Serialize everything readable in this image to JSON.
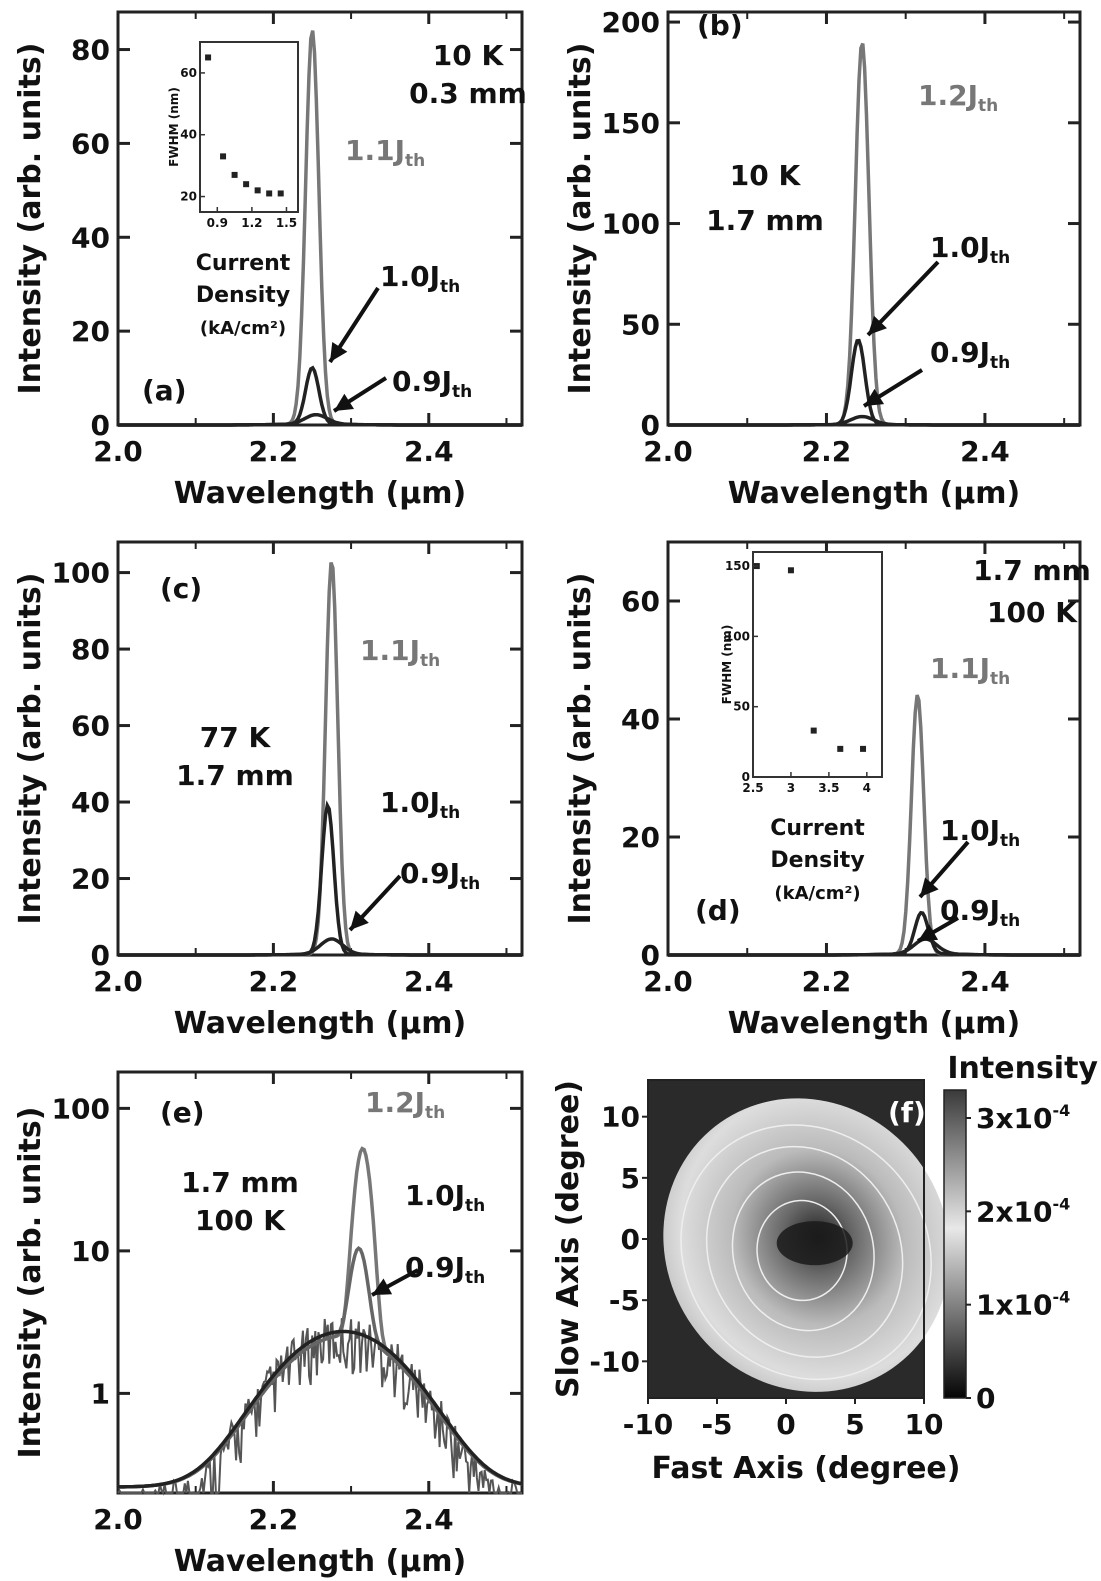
{
  "chart_data": [
    {
      "panel": "(a)",
      "type": "line",
      "xlabel": "Wavelength (μm)",
      "ylabel": "Intensity (arb. units)",
      "xlim": [
        2.0,
        2.52
      ],
      "ylim": [
        0,
        88
      ],
      "xticks": [
        "2.0",
        "2.2",
        "2.4"
      ],
      "yticks": [
        "0",
        "20",
        "40",
        "60",
        "80"
      ],
      "annotations": [
        "10 K",
        "0.3 mm"
      ],
      "series": [
        {
          "name": "1.1J",
          "peak_x": 2.25,
          "peak_y": 84,
          "width": 0.012,
          "color": "#777777"
        },
        {
          "name": "1.0J",
          "peak_x": 2.25,
          "peak_y": 12,
          "width": 0.012,
          "color": "#222222"
        },
        {
          "name": "0.9J",
          "peak_x": 2.255,
          "peak_y": 2,
          "width": 0.02,
          "color": "#222222"
        }
      ],
      "inset": {
        "xlabel": "Current Density (kA/cm²)",
        "ylabel": "FWHM (nm)",
        "xticks": [
          "0.9",
          "1.2",
          "1.5"
        ],
        "yticks": [
          "20",
          "40",
          "60"
        ],
        "xlim": [
          0.75,
          1.6
        ],
        "ylim": [
          15,
          70
        ],
        "x": [
          0.82,
          0.95,
          1.05,
          1.15,
          1.25,
          1.35,
          1.45
        ],
        "y": [
          65,
          33,
          27,
          24,
          22,
          21,
          21
        ]
      }
    },
    {
      "panel": "(b)",
      "type": "line",
      "xlabel": "Wavelength (μm)",
      "ylabel": "Intensity (arb. units)",
      "xlim": [
        2.0,
        2.52
      ],
      "ylim": [
        0,
        205
      ],
      "xticks": [
        "2.0",
        "2.2",
        "2.4"
      ],
      "yticks": [
        "0",
        "50",
        "100",
        "150",
        "200"
      ],
      "annotations": [
        "10 K",
        "1.7 mm"
      ],
      "series": [
        {
          "name": "1.2J",
          "peak_x": 2.245,
          "peak_y": 190,
          "width": 0.012,
          "color": "#777777"
        },
        {
          "name": "1.0J",
          "peak_x": 2.24,
          "peak_y": 42,
          "width": 0.012,
          "color": "#222222"
        },
        {
          "name": "0.9J",
          "peak_x": 2.245,
          "peak_y": 4,
          "width": 0.02,
          "color": "#222222"
        }
      ]
    },
    {
      "panel": "(c)",
      "type": "line",
      "xlabel": "Wavelength (μm)",
      "ylabel": "Intensity (arb. units)",
      "xlim": [
        2.0,
        2.52
      ],
      "ylim": [
        0,
        108
      ],
      "xticks": [
        "2.0",
        "2.2",
        "2.4"
      ],
      "yticks": [
        "0",
        "20",
        "40",
        "60",
        "80",
        "100"
      ],
      "annotations": [
        "77 K",
        "1.7 mm"
      ],
      "series": [
        {
          "name": "1.1J",
          "peak_x": 2.275,
          "peak_y": 103,
          "width": 0.011,
          "color": "#777777"
        },
        {
          "name": "1.0J",
          "peak_x": 2.27,
          "peak_y": 39,
          "width": 0.011,
          "color": "#222222"
        },
        {
          "name": "0.9J",
          "peak_x": 2.275,
          "peak_y": 4,
          "width": 0.02,
          "color": "#222222"
        }
      ]
    },
    {
      "panel": "(d)",
      "type": "line",
      "xlabel": "Wavelength (μm)",
      "ylabel": "Intensity (arb. units)",
      "xlim": [
        2.0,
        2.52
      ],
      "ylim": [
        0,
        70
      ],
      "xticks": [
        "2.0",
        "2.2",
        "2.4"
      ],
      "yticks": [
        "0",
        "20",
        "40",
        "60"
      ],
      "annotations": [
        "1.7 mm",
        "100 K"
      ],
      "series": [
        {
          "name": "1.1J",
          "peak_x": 2.315,
          "peak_y": 44,
          "width": 0.011,
          "color": "#777777"
        },
        {
          "name": "1.0J",
          "peak_x": 2.32,
          "peak_y": 7,
          "width": 0.012,
          "color": "#222222"
        },
        {
          "name": "0.9J",
          "peak_x": 2.325,
          "peak_y": 2.5,
          "width": 0.02,
          "color": "#222222"
        }
      ],
      "inset": {
        "xlabel": "Current Density (kA/cm²)",
        "ylabel": "FWHM (nm)",
        "xticks": [
          "2.5",
          "3",
          "3.5",
          "4"
        ],
        "yticks": [
          "0",
          "50",
          "100",
          "150"
        ],
        "xlim": [
          2.5,
          4.2
        ],
        "ylim": [
          0,
          160
        ],
        "x": [
          2.55,
          3.0,
          3.3,
          3.65,
          3.95
        ],
        "y": [
          150,
          147,
          33,
          20,
          20
        ]
      }
    },
    {
      "panel": "(e)",
      "type": "line",
      "xlabel": "Wavelength (μm)",
      "ylabel": "Intensity (arb. units)",
      "yscale": "log",
      "xlim": [
        2.0,
        2.52
      ],
      "ylim": [
        0.2,
        180
      ],
      "xticks": [
        "2.0",
        "2.2",
        "2.4"
      ],
      "yticks": [
        "1",
        "10",
        "100"
      ],
      "annotations": [
        "1.7 mm",
        "100 K"
      ],
      "series": [
        {
          "name": "1.2J",
          "peak_x": 2.315,
          "peak_y": 50,
          "width": 0.012,
          "color": "#777777"
        },
        {
          "name": "1.0J",
          "peak_x": 2.31,
          "peak_y": 8,
          "width": 0.013,
          "color": "#666666"
        },
        {
          "name": "0.9J",
          "peak_x": 2.29,
          "peak_y": 2.5,
          "width": 0.1,
          "color": "#222222"
        }
      ]
    },
    {
      "panel": "(f)",
      "type": "heatmap",
      "xlabel": "Fast Axis (degree)",
      "ylabel": "Slow Axis (degree)",
      "colorbar_label": "Intensity",
      "colorbar_ticks": [
        "0",
        "1x10",
        "2x10",
        "3x10"
      ],
      "colorbar_exponent": "-4",
      "xticks": [
        "-10",
        "-5",
        "0",
        "5",
        "10"
      ],
      "yticks": [
        "10",
        "5",
        "0",
        "-5",
        "-10"
      ],
      "xlim": [
        -10,
        10
      ],
      "ylim": [
        -13,
        13
      ]
    }
  ],
  "labels": {
    "J_sub": "th"
  }
}
